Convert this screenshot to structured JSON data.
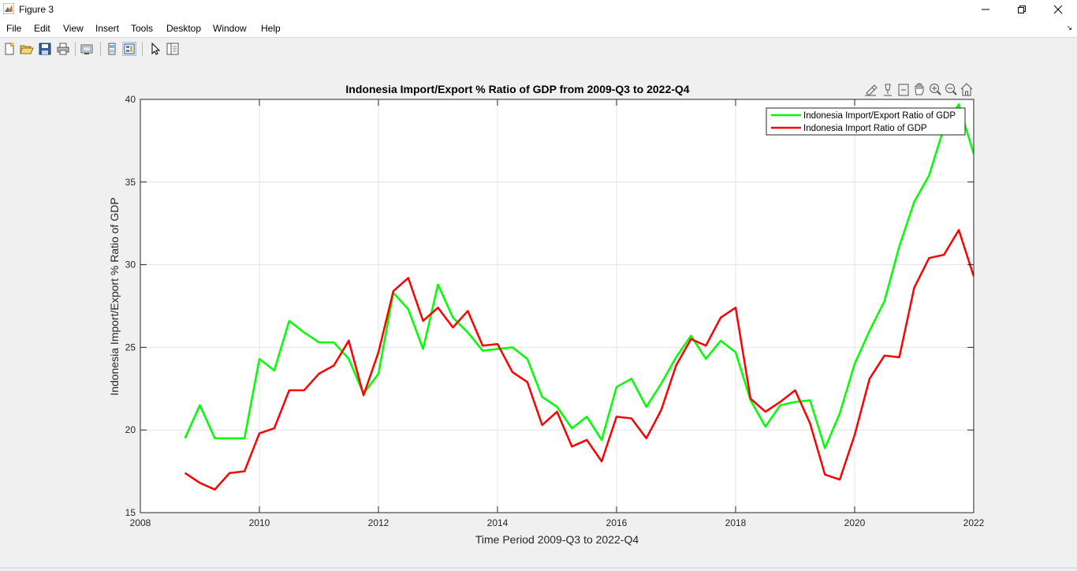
{
  "window": {
    "title": "Figure 3",
    "app_icon": "matlab-icon"
  },
  "menu": {
    "items": [
      "File",
      "Edit",
      "View",
      "Insert",
      "Tools",
      "Desktop",
      "Window",
      "Help"
    ]
  },
  "toolbar": {
    "buttons": [
      "new-figure-icon",
      "open-file-icon",
      "save-icon",
      "print-icon",
      "link-plot-icon",
      "hide-plot-tools-icon",
      "show-plot-tools-icon",
      "edit-plot-icon",
      "property-inspector-icon"
    ]
  },
  "axes_toolbar": {
    "buttons": [
      "brush-icon",
      "data-tips-icon",
      "restore-view-icon",
      "pan-icon",
      "zoom-in-icon",
      "zoom-out-icon",
      "home-icon"
    ]
  },
  "colors": {
    "export_series": "#00ff00",
    "import_series": "#ff0000"
  },
  "chart_data": {
    "type": "line",
    "title": "Indonesia Import/Export % Ratio of GDP from 2009-Q3 to 2022-Q4",
    "xlabel": "Time Period 2009-Q3 to 2022-Q4",
    "ylabel": "Indonesia Import/Export % Ratio of GDP",
    "xlim": [
      2008,
      2022
    ],
    "ylim": [
      15,
      40
    ],
    "xticks": [
      2008,
      2010,
      2012,
      2014,
      2016,
      2018,
      2020,
      2022
    ],
    "yticks": [
      15,
      20,
      25,
      30,
      35,
      40
    ],
    "grid": true,
    "legend_position": "top-right",
    "x": [
      2008.75,
      2009.0,
      2009.25,
      2009.5,
      2009.75,
      2010.0,
      2010.25,
      2010.5,
      2010.75,
      2011.0,
      2011.25,
      2011.5,
      2011.75,
      2012.0,
      2012.25,
      2012.5,
      2012.75,
      2013.0,
      2013.25,
      2013.5,
      2013.75,
      2014.0,
      2014.25,
      2014.5,
      2014.75,
      2015.0,
      2015.25,
      2015.5,
      2015.75,
      2016.0,
      2016.25,
      2016.5,
      2016.75,
      2017.0,
      2017.25,
      2017.5,
      2017.75,
      2018.0,
      2018.25,
      2018.5,
      2018.75,
      2019.0,
      2019.25,
      2019.5,
      2019.75,
      2020.0,
      2020.25,
      2020.5,
      2020.75,
      2021.0,
      2021.25,
      2021.5,
      2021.75,
      2022.0
    ],
    "series": [
      {
        "name": "Indonesia Import/Export Ratio of GDP",
        "color": "#00ff00",
        "values": [
          19.5,
          21.5,
          19.5,
          19.5,
          19.5,
          24.3,
          23.6,
          26.6,
          25.9,
          25.3,
          25.3,
          24.3,
          22.2,
          23.4,
          28.3,
          27.3,
          24.9,
          28.8,
          26.8,
          25.9,
          24.8,
          24.9,
          25.0,
          24.3,
          22.0,
          21.4,
          20.1,
          20.8,
          19.4,
          22.6,
          23.1,
          21.4,
          22.8,
          24.4,
          25.7,
          24.3,
          25.4,
          24.7,
          21.8,
          20.2,
          21.5,
          21.7,
          21.8,
          18.9,
          21.0,
          24.0,
          26.0,
          27.8,
          31.1,
          33.8,
          35.4,
          38.3,
          39.7,
          36.7
        ]
      },
      {
        "name": "Indonesia Import Ratio of GDP",
        "color": "#ff0000",
        "values": [
          17.4,
          16.8,
          16.4,
          17.4,
          17.5,
          19.8,
          20.1,
          22.4,
          22.4,
          23.4,
          23.9,
          25.4,
          22.1,
          24.7,
          28.4,
          29.2,
          26.6,
          27.4,
          26.2,
          27.2,
          25.1,
          25.2,
          23.5,
          22.9,
          20.3,
          21.1,
          19.0,
          19.4,
          18.1,
          20.8,
          20.7,
          19.5,
          21.2,
          23.9,
          25.5,
          25.1,
          26.8,
          27.4,
          21.9,
          21.1,
          21.7,
          22.4,
          20.4,
          17.3,
          17.0,
          19.7,
          23.1,
          24.5,
          24.4,
          28.6,
          30.4,
          30.6,
          32.1,
          29.3
        ]
      }
    ]
  }
}
